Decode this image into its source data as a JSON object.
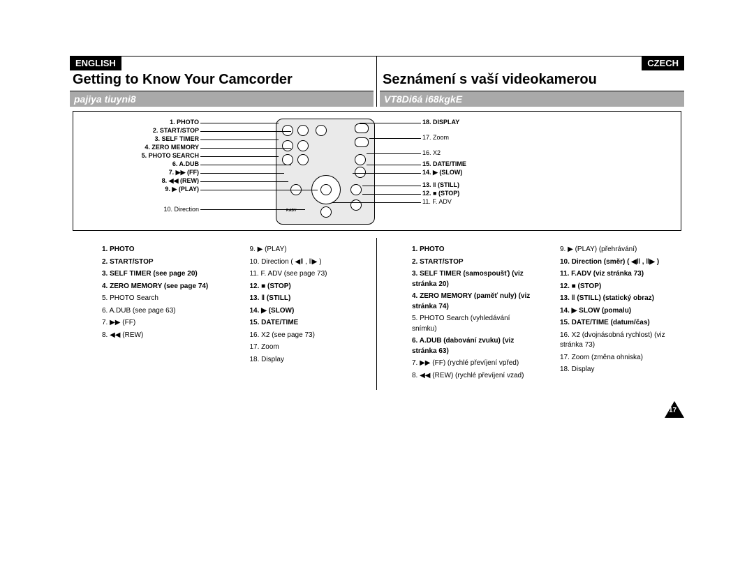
{
  "page_number": "17",
  "left": {
    "lang": "ENGLISH",
    "heading": "Getting to Know Your Camcorder",
    "subheading": "pajiya tiuyni8",
    "list_a": [
      "1.  PHOTO",
      "2.  START/STOP",
      "3.  SELF TIMER (see page 20)",
      "4.  ZERO MEMORY (see page 74)",
      "5.  PHOTO Search",
      "6.  A.DUB (see page 63)",
      "7.  ▶▶ (FF)",
      "8.  ◀◀ (REW)"
    ],
    "list_b": [
      "9.  ▶ (PLAY)",
      "10. Direction ( ◀‖ , ‖▶ )",
      "11. F. ADV (see page 73)",
      "12. ■ (STOP)",
      "13. ‖ (STILL)",
      "14. ▶ (SLOW)",
      "15. DATE/TIME",
      "16. X2 (see page 73)",
      "17. Zoom",
      "18. Display"
    ]
  },
  "right": {
    "lang": "CZECH",
    "heading": "Seznámení s vaší videokamerou",
    "subheading": "VT8Di6á i68kgkE",
    "list_a": [
      "1.  PHOTO",
      "2.  START/STOP",
      "3.  SELF TIMER (samospoušť) (viz stránka 20)",
      "4.  ZERO MEMORY (paměť nuly) (viz stránka 74)",
      "5.  PHOTO Search (vyhledávání snímku)",
      "6.  A.DUB (dabování zvuku) (viz stránka 63)",
      "7.  ▶▶ (FF) (rychlé převíjení vpřed)",
      "8.  ◀◀ (REW) (rychlé převíjení vzad)"
    ],
    "list_b": [
      "9.  ▶ (PLAY) (přehrávání)",
      "10. Direction (směr) ( ◀‖ , ‖▶ )",
      "11. F.ADV (viz stránka 73)",
      "12. ■ (STOP)",
      "13. ‖ (STILL) (statický obraz)",
      "14. ▶ SLOW (pomalu)",
      "15. DATE/TIME (datum/čas)",
      "16. X2 (dvojnásobná rychlost) (viz stránka 73)",
      "17. Zoom (změna ohniska)",
      "18. Display"
    ]
  },
  "diagram_left": [
    "1. PHOTO",
    "2. START/STOP",
    "3. SELF TIMER",
    "4. ZERO MEMORY",
    "5. PHOTO SEARCH",
    "6. A.DUB",
    "7. ▶▶ (FF)",
    "8. ◀◀ (REW)",
    "9. ▶ (PLAY)",
    "10. Direction"
  ],
  "diagram_right": [
    "18. DISPLAY",
    "17. Zoom",
    "16. X2",
    "15. DATE/TIME",
    "14. ▶ (SLOW)",
    "13. ‖ (STILL)",
    "12. ■ (STOP)",
    "11. F. ADV"
  ]
}
